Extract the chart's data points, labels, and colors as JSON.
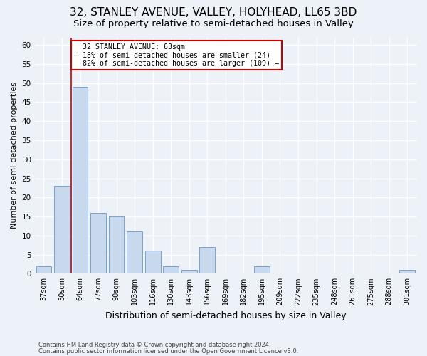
{
  "title1": "32, STANLEY AVENUE, VALLEY, HOLYHEAD, LL65 3BD",
  "title2": "Size of property relative to semi-detached houses in Valley",
  "xlabel": "Distribution of semi-detached houses by size in Valley",
  "ylabel": "Number of semi-detached properties",
  "categories": [
    "37sqm",
    "50sqm",
    "64sqm",
    "77sqm",
    "90sqm",
    "103sqm",
    "116sqm",
    "130sqm",
    "143sqm",
    "156sqm",
    "169sqm",
    "182sqm",
    "195sqm",
    "209sqm",
    "222sqm",
    "235sqm",
    "248sqm",
    "261sqm",
    "275sqm",
    "288sqm",
    "301sqm"
  ],
  "values": [
    2,
    23,
    49,
    16,
    15,
    11,
    6,
    2,
    1,
    7,
    0,
    0,
    2,
    0,
    0,
    0,
    0,
    0,
    0,
    0,
    1
  ],
  "bar_color": "#c8d9ee",
  "bar_edge_color": "#6699cc",
  "subject_line_color": "#cc0000",
  "annotation_box_edge": "#cc0000",
  "annotation_box_face": "#ffffff",
  "ylim": [
    0,
    62
  ],
  "yticks": [
    0,
    5,
    10,
    15,
    20,
    25,
    30,
    35,
    40,
    45,
    50,
    55,
    60
  ],
  "subject_label": "32 STANLEY AVENUE: 63sqm",
  "pct_smaller": "18% of semi-detached houses are smaller (24)",
  "pct_larger": "82% of semi-detached houses are larger (109)",
  "footer1": "Contains HM Land Registry data © Crown copyright and database right 2024.",
  "footer2": "Contains public sector information licensed under the Open Government Licence v3.0.",
  "bg_color": "#edf2f9",
  "plot_bg_color": "#edf2f9",
  "grid_color": "#ffffff",
  "title1_fontsize": 11,
  "title2_fontsize": 9.5,
  "subject_line_bar_index": 1.5
}
